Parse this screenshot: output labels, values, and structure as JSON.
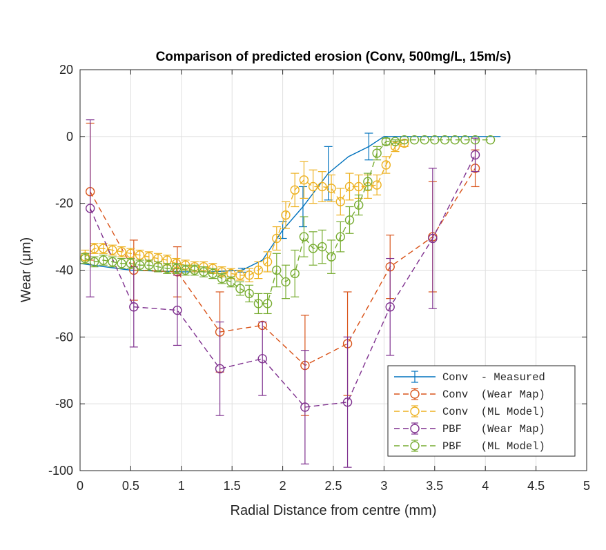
{
  "chart_data": {
    "type": "line",
    "title": "Comparison of predicted erosion (Conv, 500mg/L, 15m/s)",
    "xlabel": "Radial Distance from centre (mm)",
    "ylabel": "Wear (μm)",
    "xlim": [
      0,
      5
    ],
    "ylim": [
      -100,
      20
    ],
    "xticks": [
      0,
      0.5,
      1,
      1.5,
      2,
      2.5,
      3,
      3.5,
      4,
      4.5,
      5
    ],
    "xtick_labels": [
      "0",
      "0.5",
      "1",
      "1.5",
      "2",
      "2.5",
      "3",
      "3.5",
      "4",
      "4.5",
      "5"
    ],
    "yticks": [
      20,
      0,
      -20,
      -40,
      -60,
      -80,
      -100
    ],
    "ytick_labels": [
      "20",
      "0",
      "-20",
      "-40",
      "-60",
      "-80",
      "-100"
    ],
    "grid": true,
    "legend_position": "bottom-right",
    "series": [
      {
        "name": "Conv  - Measured",
        "color": "#0072BD",
        "line_style": "solid",
        "marker": "none",
        "x": [
          0,
          0.5,
          1,
          1.3,
          1.6,
          1.8,
          2.0,
          2.2,
          2.45,
          2.65,
          2.85,
          3.0,
          3.2,
          3.5,
          4.15
        ],
        "y": [
          -38,
          -40,
          -40.5,
          -40.5,
          -40,
          -37,
          -28,
          -21,
          -11,
          -6,
          -3,
          0,
          0,
          0,
          0
        ],
        "err": [
          0,
          0,
          0,
          0,
          0.6,
          0,
          2.5,
          6,
          8,
          0,
          4,
          0,
          0,
          0,
          0
        ]
      },
      {
        "name": "Conv  (Wear Map)",
        "color": "#D95319",
        "line_style": "dashed",
        "marker": "circle",
        "x": [
          0.1,
          0.53,
          0.96,
          1.38,
          1.8,
          2.22,
          2.64,
          3.06,
          3.48,
          3.9
        ],
        "y": [
          -16.5,
          -40,
          -40.5,
          -58.5,
          -56.5,
          -68.5,
          -62,
          -39,
          -30,
          -9.5
        ],
        "err": [
          20.5,
          9,
          7.5,
          12,
          0,
          15,
          15.5,
          9.5,
          16.5,
          5.5
        ]
      },
      {
        "name": "Conv  (ML Model)",
        "color": "#EDB120",
        "line_style": "dashed",
        "marker": "circle",
        "x": [
          0.05,
          0.14,
          0.23,
          0.32,
          0.41,
          0.5,
          0.59,
          0.68,
          0.77,
          0.86,
          0.95,
          1.04,
          1.13,
          1.22,
          1.31,
          1.4,
          1.49,
          1.58,
          1.67,
          1.76,
          1.85,
          1.94,
          2.03,
          2.12,
          2.21,
          2.3,
          2.39,
          2.48,
          2.57,
          2.66,
          2.75,
          2.84,
          2.93,
          3.02,
          3.11,
          3.2
        ],
        "y": [
          -36,
          -33.5,
          -33.5,
          -34,
          -34.5,
          -35,
          -35.5,
          -36,
          -36.5,
          -37,
          -38,
          -38.5,
          -39,
          -39,
          -39.5,
          -40.5,
          -41,
          -41.5,
          -41.5,
          -40,
          -37.5,
          -30.5,
          -23.5,
          -16,
          -13,
          -15,
          -15,
          -15.5,
          -19.5,
          -15,
          -15,
          -15,
          -14.5,
          -8.5,
          -3,
          -2
        ],
        "err": [
          2,
          1.5,
          1.5,
          1.5,
          1.5,
          1.5,
          1.5,
          1.5,
          1.5,
          1.5,
          1.5,
          1.5,
          1.5,
          1.5,
          1.5,
          1.5,
          1.5,
          1.5,
          2,
          2.5,
          3,
          3.5,
          4,
          5,
          5.5,
          5,
          4.5,
          4,
          4,
          4,
          3.5,
          3.5,
          3,
          2.5,
          1.5,
          1
        ]
      },
      {
        "name": "PBF   (Wear Map)",
        "color": "#7E2F8E",
        "line_style": "dashed",
        "marker": "circle",
        "x": [
          0.1,
          0.53,
          0.96,
          1.38,
          1.8,
          2.22,
          2.64,
          3.06,
          3.48,
          3.9
        ],
        "y": [
          -21.5,
          -51,
          -52,
          -69.5,
          -66.5,
          -81,
          -79.5,
          -51,
          -30.5,
          -5.5
        ],
        "err": [
          26.5,
          12,
          10.5,
          14,
          11,
          17,
          19.5,
          14.5,
          21,
          5
        ]
      },
      {
        "name": "PBF   (ML Model)",
        "color": "#77AC30",
        "line_style": "dashed",
        "marker": "circle",
        "x": [
          0.05,
          0.14,
          0.23,
          0.32,
          0.41,
          0.5,
          0.59,
          0.68,
          0.77,
          0.86,
          0.95,
          1.04,
          1.13,
          1.22,
          1.31,
          1.4,
          1.49,
          1.58,
          1.67,
          1.76,
          1.85,
          1.94,
          2.03,
          2.12,
          2.21,
          2.3,
          2.39,
          2.48,
          2.57,
          2.66,
          2.75,
          2.84,
          2.93,
          3.02,
          3.11,
          3.2,
          3.3,
          3.4,
          3.5,
          3.6,
          3.7,
          3.8,
          3.9,
          4.05
        ],
        "y": [
          -36.5,
          -37.5,
          -37,
          -37.5,
          -38,
          -38,
          -38.5,
          -38.5,
          -39,
          -39.5,
          -39.5,
          -40,
          -40,
          -40.5,
          -41,
          -42.5,
          -43.5,
          -45.5,
          -47,
          -50,
          -50,
          -40,
          -43.5,
          -41,
          -30,
          -33.5,
          -33,
          -36,
          -30,
          -25,
          -20.5,
          -13.5,
          -5,
          -1.5,
          -1.5,
          -1,
          -1,
          -1,
          -1,
          -1,
          -1,
          -1,
          -1,
          -1
        ],
        "err": [
          1.5,
          1.5,
          1.5,
          1.5,
          1.5,
          1.5,
          1.5,
          1.5,
          1.5,
          1.5,
          1.5,
          1.5,
          1.5,
          1.5,
          1.5,
          1.5,
          1.5,
          2,
          2.5,
          3,
          3,
          5,
          5,
          7,
          6,
          5,
          5,
          5,
          4.5,
          4,
          3,
          2.5,
          2,
          1,
          0.5,
          0,
          0,
          0,
          0,
          0,
          0,
          0,
          0,
          0
        ]
      }
    ]
  }
}
